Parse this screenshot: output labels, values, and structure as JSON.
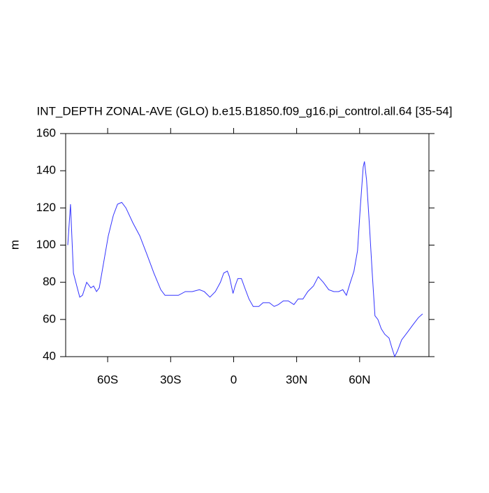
{
  "chart_data": {
    "type": "line",
    "title": "INT_DEPTH ZONAL-AVE (GLO) b.e15.B1850.f09_g16.pi_control.all.64 [35-54]",
    "y_label": "m",
    "x": [
      -79,
      -77.7,
      -76.3,
      -74.7,
      -73.3,
      -72,
      -70,
      -68,
      -66.7,
      -65.3,
      -64,
      -62,
      -59.7,
      -57.3,
      -55.3,
      -53.3,
      -51.3,
      -48,
      -44.7,
      -41.3,
      -38,
      -34.7,
      -32.7,
      -29.7,
      -26.3,
      -23,
      -19.7,
      -16.3,
      -14,
      -11.3,
      -8.7,
      -6.3,
      -4.7,
      -3,
      -2,
      -0.3,
      0.7,
      2,
      3.7,
      5.3,
      7.3,
      9.3,
      12,
      14,
      17,
      19.3,
      21.3,
      23.7,
      26,
      28.7,
      30.7,
      33,
      35.3,
      38,
      40.3,
      42.7,
      45.3,
      47.7,
      50,
      52,
      53.7,
      55.3,
      57.3,
      59,
      60.3,
      61.7,
      62.3,
      63.3,
      64.7,
      66,
      67.3,
      68.7,
      70.3,
      72,
      74,
      75.3,
      76.7,
      78,
      80,
      82.7,
      85.3,
      88,
      90
    ],
    "series": [
      {
        "name": "INT_DEPTH",
        "color": "#3333ff",
        "values": [
          100,
          122,
          85,
          78,
          72,
          73,
          80,
          77,
          78,
          75,
          77,
          90,
          105,
          116,
          122,
          123,
          120,
          112,
          105,
          95,
          85,
          76,
          73,
          73,
          73,
          75,
          75,
          76,
          75,
          72,
          75,
          80,
          85,
          86,
          83,
          74,
          78,
          82,
          82,
          77,
          71,
          67,
          67,
          69,
          69,
          67,
          68,
          70,
          70,
          68,
          71,
          71,
          75,
          78,
          83,
          80,
          76,
          75,
          75,
          76,
          73,
          79,
          86,
          97,
          120,
          142,
          145,
          135,
          110,
          85,
          62,
          60,
          55,
          52,
          50,
          45,
          40,
          43,
          49,
          53,
          57,
          61,
          63
        ]
      }
    ],
    "xlim": [
      -80,
      93
    ],
    "xticks": [
      {
        "value": -60,
        "label": "60S"
      },
      {
        "value": -30,
        "label": "30S"
      },
      0,
      {
        "value": 30,
        "label": "30N"
      },
      {
        "value": 60,
        "label": "60N"
      }
    ],
    "ylim": [
      40,
      160
    ],
    "yticks": [
      40,
      60,
      80,
      100,
      120,
      140,
      160
    ]
  }
}
